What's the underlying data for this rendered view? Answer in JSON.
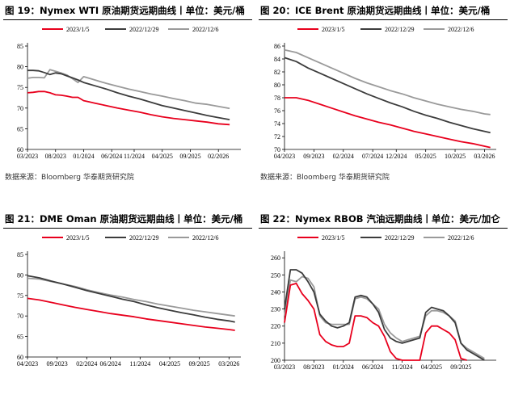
{
  "chart_data": [
    {
      "type": "line",
      "title": "图 19：Nymex WTI 原油期货远期曲线丨单位：美元/桶",
      "source": "数据来源：Bloomberg 华泰期货研究院",
      "yticks": [
        60,
        65,
        70,
        75,
        80,
        85
      ],
      "ylim": [
        60,
        85
      ],
      "xlim": [
        0,
        38
      ],
      "xtick_labels": [
        {
          "x": 0,
          "label": "03/2023"
        },
        {
          "x": 5,
          "label": "08/2023"
        },
        {
          "x": 10,
          "label": "01/2024"
        },
        {
          "x": 15,
          "label": "06/2024"
        },
        {
          "x": 19,
          "label": "11/2024"
        },
        {
          "x": 24,
          "label": "04/2025"
        },
        {
          "x": 29,
          "label": "09/2025"
        },
        {
          "x": 34,
          "label": "02/2026"
        }
      ],
      "series": [
        {
          "name": "2023/1/5",
          "color": "#e8001d",
          "x": [
            0,
            1,
            2,
            3,
            4,
            5,
            6,
            7,
            8,
            9,
            10,
            11,
            12,
            14,
            16,
            18,
            20,
            22,
            24,
            26,
            28,
            30,
            32,
            34,
            36
          ],
          "values": [
            73.7,
            73.8,
            74.0,
            74.0,
            73.7,
            73.2,
            73.1,
            72.9,
            72.6,
            72.6,
            71.8,
            71.5,
            71.2,
            70.6,
            70.0,
            69.5,
            69.0,
            68.4,
            67.9,
            67.5,
            67.2,
            66.9,
            66.6,
            66.2,
            66.0
          ]
        },
        {
          "name": "2022/12/29",
          "color": "#3c3c3c",
          "x": [
            0,
            1,
            2,
            3,
            4,
            5,
            6,
            7,
            8,
            9,
            10,
            11,
            12,
            14,
            16,
            18,
            20,
            22,
            24,
            26,
            28,
            30,
            32,
            34,
            36
          ],
          "values": [
            79.1,
            79.1,
            79.0,
            78.6,
            78.1,
            78.5,
            78.3,
            77.8,
            77.3,
            76.8,
            76.2,
            75.8,
            75.4,
            74.6,
            73.7,
            72.9,
            72.2,
            71.4,
            70.6,
            70.0,
            69.4,
            68.8,
            68.2,
            67.7,
            67.2
          ]
        },
        {
          "name": "2022/12/6",
          "color": "#9a9a9a",
          "x": [
            0,
            1,
            2,
            3,
            4,
            5,
            6,
            7,
            8,
            9,
            10,
            11,
            12,
            14,
            16,
            18,
            20,
            22,
            24,
            26,
            28,
            30,
            32,
            34,
            36
          ],
          "values": [
            77.2,
            77.4,
            77.4,
            77.3,
            79.3,
            78.9,
            78.5,
            78.0,
            77.1,
            76.2,
            77.6,
            77.2,
            76.8,
            76.0,
            75.3,
            74.6,
            74.0,
            73.4,
            72.9,
            72.3,
            71.8,
            71.2,
            70.9,
            70.4,
            69.9
          ]
        }
      ]
    },
    {
      "type": "line",
      "title": "图 20：ICE Brent 原油期货远期曲线丨单位：美元/桶",
      "source": "数据来源：Bloomberg 华泰期货研究院",
      "yticks": [
        70,
        72,
        74,
        76,
        78,
        80,
        82,
        84,
        86
      ],
      "ylim": [
        70,
        86
      ],
      "xlim": [
        0,
        36
      ],
      "xtick_labels": [
        {
          "x": 0,
          "label": "04/2023"
        },
        {
          "x": 5,
          "label": "09/2023"
        },
        {
          "x": 10,
          "label": "02/2024"
        },
        {
          "x": 15,
          "label": "07/2024"
        },
        {
          "x": 19,
          "label": "12/2024"
        },
        {
          "x": 24,
          "label": "05/2025"
        },
        {
          "x": 29,
          "label": "10/2025"
        },
        {
          "x": 34,
          "label": "03/2026"
        }
      ],
      "series": [
        {
          "name": "2023/1/5",
          "color": "#e8001d",
          "x": [
            0,
            2,
            4,
            6,
            8,
            10,
            12,
            14,
            16,
            18,
            20,
            22,
            24,
            26,
            28,
            30,
            32,
            34,
            35
          ],
          "values": [
            78.0,
            78.0,
            77.6,
            77.0,
            76.4,
            75.8,
            75.2,
            74.7,
            74.2,
            73.8,
            73.3,
            72.8,
            72.4,
            72.0,
            71.6,
            71.2,
            70.9,
            70.5,
            70.3
          ]
        },
        {
          "name": "2022/12/29",
          "color": "#3c3c3c",
          "x": [
            0,
            2,
            4,
            6,
            8,
            10,
            12,
            14,
            16,
            18,
            20,
            22,
            24,
            26,
            28,
            30,
            32,
            34,
            35
          ],
          "values": [
            84.2,
            83.6,
            82.6,
            81.8,
            81.0,
            80.2,
            79.4,
            78.6,
            77.9,
            77.2,
            76.6,
            75.9,
            75.3,
            74.8,
            74.2,
            73.7,
            73.2,
            72.8,
            72.6
          ]
        },
        {
          "name": "2022/12/6",
          "color": "#9a9a9a",
          "x": [
            0,
            2,
            4,
            6,
            8,
            10,
            12,
            14,
            16,
            18,
            20,
            22,
            24,
            26,
            28,
            30,
            32,
            34,
            35
          ],
          "values": [
            85.4,
            85.0,
            84.2,
            83.4,
            82.6,
            81.8,
            81.0,
            80.3,
            79.7,
            79.1,
            78.6,
            78.0,
            77.5,
            77.0,
            76.6,
            76.2,
            75.9,
            75.5,
            75.4
          ]
        }
      ]
    },
    {
      "type": "line",
      "title": "图 21：DME Oman 原油期货远期曲线丨单位：美元/桶",
      "source": "",
      "yticks": [
        60,
        65,
        70,
        75,
        80,
        85
      ],
      "ylim": [
        60,
        85
      ],
      "xlim": [
        0,
        36
      ],
      "xtick_labels": [
        {
          "x": 0,
          "label": "04/2023"
        },
        {
          "x": 5,
          "label": "09/2023"
        },
        {
          "x": 10,
          "label": "02/2024"
        },
        {
          "x": 14,
          "label": "06/2024"
        },
        {
          "x": 19,
          "label": "11/2024"
        },
        {
          "x": 24,
          "label": "04/2025"
        },
        {
          "x": 29,
          "label": "09/2025"
        },
        {
          "x": 34,
          "label": "03/2026"
        }
      ],
      "series": [
        {
          "name": "2023/1/5",
          "color": "#e8001d",
          "x": [
            0,
            2,
            4,
            6,
            8,
            10,
            12,
            14,
            16,
            18,
            20,
            22,
            24,
            26,
            28,
            30,
            32,
            34,
            35
          ],
          "values": [
            74.3,
            73.9,
            73.3,
            72.7,
            72.1,
            71.6,
            71.1,
            70.6,
            70.2,
            69.8,
            69.3,
            68.9,
            68.5,
            68.1,
            67.7,
            67.3,
            67.0,
            66.7,
            66.5
          ]
        },
        {
          "name": "2022/12/29",
          "color": "#3c3c3c",
          "x": [
            0,
            2,
            4,
            6,
            8,
            10,
            12,
            14,
            16,
            18,
            20,
            22,
            24,
            26,
            28,
            30,
            32,
            34,
            35
          ],
          "values": [
            79.8,
            79.3,
            78.5,
            77.8,
            77.0,
            76.2,
            75.5,
            74.8,
            74.1,
            73.5,
            72.7,
            72.0,
            71.4,
            70.8,
            70.3,
            69.7,
            69.2,
            68.8,
            68.5
          ]
        },
        {
          "name": "2022/12/6",
          "color": "#9a9a9a",
          "x": [
            0,
            2,
            4,
            6,
            8,
            10,
            12,
            14,
            16,
            18,
            20,
            22,
            24,
            26,
            28,
            30,
            32,
            34,
            35
          ],
          "values": [
            79.2,
            79.0,
            78.4,
            77.8,
            77.2,
            76.4,
            75.7,
            75.1,
            74.6,
            74.0,
            73.5,
            72.9,
            72.4,
            71.9,
            71.4,
            71.0,
            70.6,
            70.2,
            70.0
          ]
        }
      ]
    },
    {
      "type": "line",
      "title": "图 22：Nymex RBOB 汽油远期曲线丨单位：美元/加仑",
      "source": "",
      "yticks": [
        200,
        210,
        220,
        230,
        240,
        250,
        260
      ],
      "ylim": [
        200,
        262
      ],
      "xlim": [
        0,
        36
      ],
      "xtick_labels": [
        {
          "x": 0,
          "label": "03/2023"
        },
        {
          "x": 5,
          "label": "08/2023"
        },
        {
          "x": 10,
          "label": "01/2024"
        },
        {
          "x": 15,
          "label": "06/2024"
        },
        {
          "x": 20,
          "label": "11/2024"
        },
        {
          "x": 25,
          "label": "04/2025"
        },
        {
          "x": 30,
          "label": "09/2025"
        }
      ],
      "series": [
        {
          "name": "2023/1/5",
          "color": "#e8001d",
          "x": [
            0,
            1,
            2,
            3,
            4,
            5,
            6,
            7,
            8,
            9,
            10,
            11,
            12,
            13,
            14,
            15,
            16,
            17,
            18,
            19,
            20,
            21,
            22,
            23,
            24,
            25,
            26,
            27,
            28,
            29,
            30,
            31
          ],
          "values": [
            222,
            244,
            245,
            239,
            235,
            230,
            215,
            211,
            209,
            208,
            208,
            210,
            226,
            226,
            225,
            222,
            220,
            214,
            205,
            201,
            199,
            199,
            200,
            199,
            216,
            220,
            220,
            218,
            216,
            212,
            201,
            198
          ]
        },
        {
          "name": "2022/12/29",
          "color": "#3c3c3c",
          "x": [
            0,
            1,
            2,
            3,
            4,
            5,
            6,
            7,
            8,
            9,
            10,
            11,
            12,
            13,
            14,
            15,
            16,
            17,
            18,
            19,
            20,
            21,
            22,
            23,
            24,
            25,
            26,
            27,
            28,
            29,
            30,
            31,
            32,
            33,
            34
          ],
          "values": [
            230,
            253,
            253,
            251,
            246,
            240,
            227,
            223,
            220,
            219,
            220,
            222,
            237,
            238,
            237,
            233,
            228,
            218,
            213,
            211,
            210,
            211,
            212,
            213,
            228,
            231,
            230,
            229,
            226,
            222,
            210,
            206,
            204,
            202,
            200
          ]
        },
        {
          "name": "2022/12/6",
          "color": "#9a9a9a",
          "x": [
            0,
            1,
            2,
            3,
            4,
            5,
            6,
            7,
            8,
            9,
            10,
            11,
            12,
            13,
            14,
            15,
            16,
            17,
            18,
            19,
            20,
            21,
            22,
            23,
            24,
            25,
            26,
            27,
            28,
            29,
            30,
            31,
            32,
            33,
            34
          ],
          "values": [
            226,
            247,
            246,
            249,
            248,
            243,
            226,
            222,
            221,
            221,
            221,
            221,
            236,
            237,
            236,
            233,
            230,
            221,
            216,
            213,
            211,
            212,
            213,
            214,
            226,
            229,
            229,
            228,
            226,
            223,
            210,
            207,
            205,
            203,
            201
          ]
        }
      ]
    }
  ]
}
